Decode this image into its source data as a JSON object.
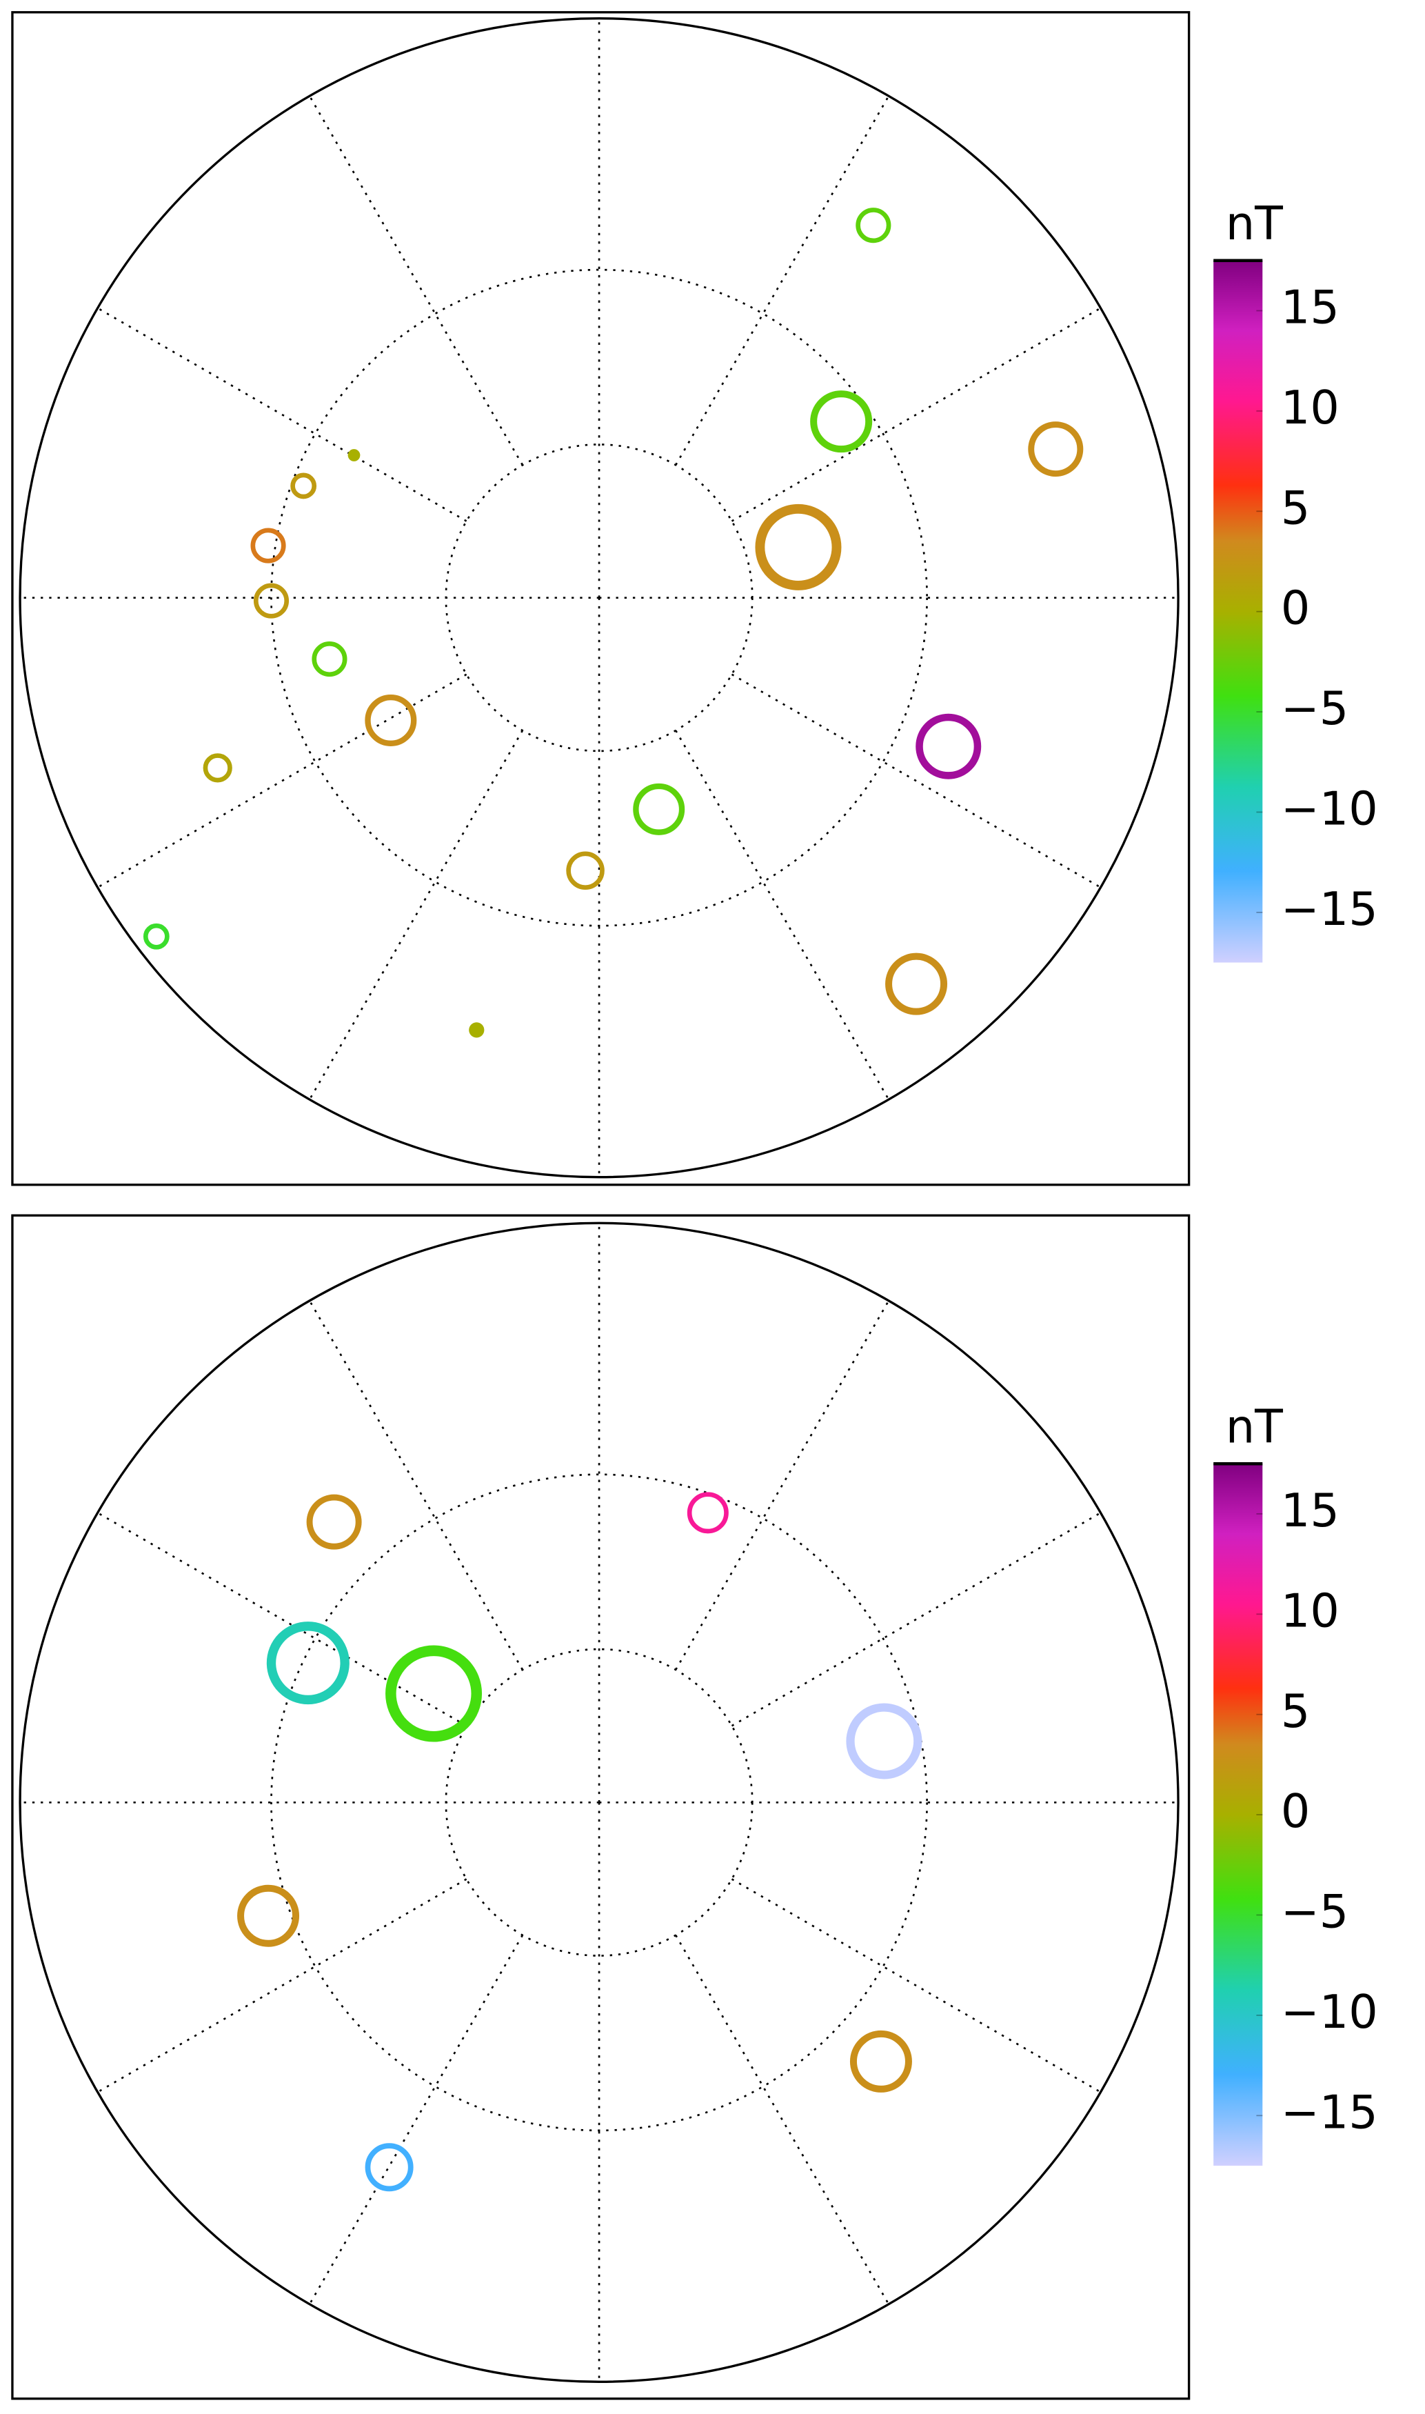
{
  "panels": [
    {
      "colorbar": {
        "label": "nT",
        "lim": [
          -17.5,
          17.5
        ],
        "ticks": [
          15,
          10,
          5,
          0,
          {
            "value": -5,
            "label": "−5"
          },
          {
            "value": -10,
            "label": "−10"
          },
          {
            "value": -15,
            "label": "−15"
          }
        ]
      },
      "stations": [
        {
          "value": -3
        },
        {
          "value": -3
        },
        {
          "value": 3
        },
        {
          "value": 3
        },
        {
          "value": 16
        },
        {
          "value": -3
        },
        {
          "value": 3
        },
        {
          "value": 2
        },
        {
          "value": 0
        },
        {
          "value": -5
        },
        {
          "value": 1
        },
        {
          "value": 3
        },
        {
          "value": -3
        },
        {
          "value": 2
        },
        {
          "value": 4
        },
        {
          "value": 2
        },
        {
          "value": 0
        }
      ]
    },
    {
      "colorbar": {
        "label": "nT",
        "lim": [
          -17.5,
          17.5
        ],
        "ticks": [
          15,
          10,
          5,
          0,
          {
            "value": -5,
            "label": "−5"
          },
          {
            "value": -10,
            "label": "−10"
          },
          {
            "value": -15,
            "label": "−15"
          }
        ]
      },
      "stations": [
        {
          "value": 11
        },
        {
          "value": 3
        },
        {
          "value": -9
        },
        {
          "value": -4
        },
        {
          "value": -17
        },
        {
          "value": 3
        },
        {
          "value": 3
        },
        {
          "value": -13
        }
      ]
    }
  ]
}
